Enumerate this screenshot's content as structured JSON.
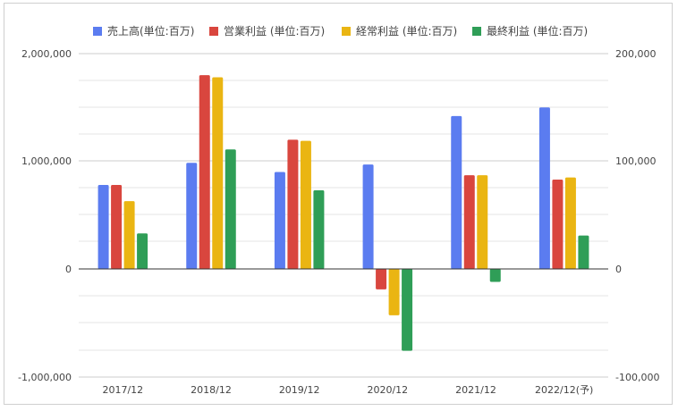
{
  "chart_data": {
    "type": "bar",
    "categories": [
      "2017/12",
      "2018/12",
      "2019/12",
      "2020/12",
      "2021/12",
      "2022/12(予)"
    ],
    "series": [
      {
        "name": "売上高(単位:百万)",
        "axis": "left",
        "color": "#5b7cf0",
        "values": [
          780000,
          985000,
          900000,
          970000,
          1420000,
          1500000
        ]
      },
      {
        "name": "営業利益 (単位:百万)",
        "axis": "right",
        "color": "#d9463e",
        "values": [
          78000,
          180000,
          120000,
          -19000,
          87000,
          83000
        ]
      },
      {
        "name": "経常利益 (単位:百万)",
        "axis": "right",
        "color": "#eab512",
        "values": [
          63000,
          178000,
          119000,
          -43000,
          87000,
          85000
        ]
      },
      {
        "name": "最終利益 (単位:百万)",
        "axis": "right",
        "color": "#2f9e57",
        "values": [
          33000,
          111000,
          73000,
          -76000,
          -12000,
          31000
        ]
      }
    ],
    "y_left": {
      "ylim": [
        -1000000,
        2000000
      ],
      "ticks": [
        2000000,
        1000000,
        0,
        -1000000
      ],
      "tick_labels": [
        "2,000,000",
        "1,000,000",
        "0",
        "-1,000,000"
      ]
    },
    "y_right": {
      "ylim": [
        -100000,
        200000
      ],
      "ticks": [
        200000,
        100000,
        0,
        -100000
      ],
      "tick_labels": [
        "200,000",
        "100,000",
        "0",
        "-100,000"
      ]
    },
    "grid": true,
    "legend_position": "top-center"
  }
}
